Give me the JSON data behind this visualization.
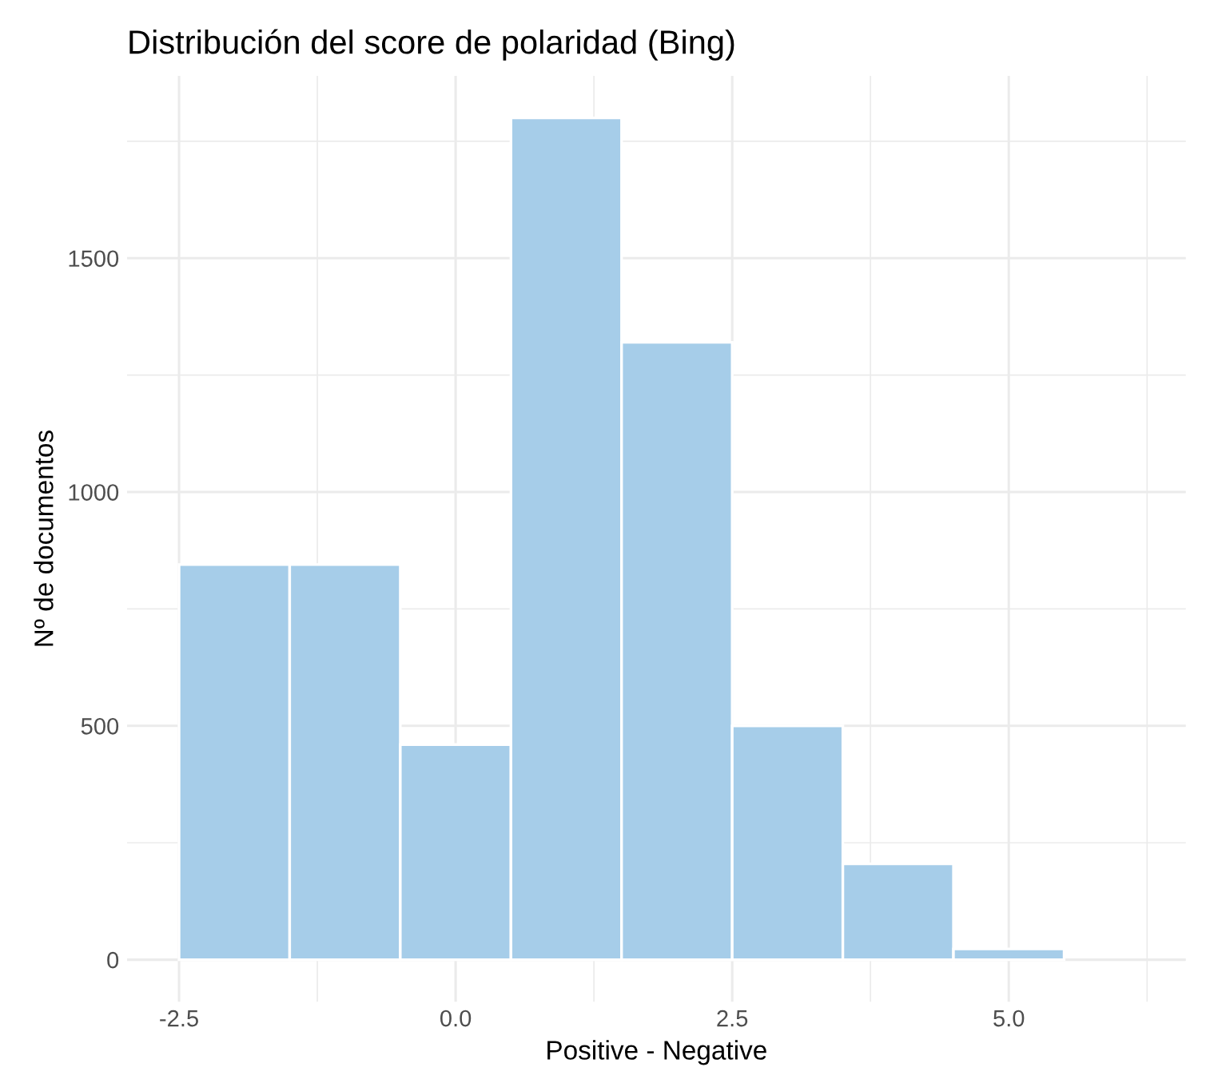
{
  "chart_data": {
    "type": "histogram",
    "title": "Distribución del score de polaridad (Bing)",
    "xlabel": "Positive - Negative",
    "ylabel": "Nº de documentos",
    "bins": [
      -2.5,
      -1.5,
      -0.5,
      0.5,
      1.5,
      2.5,
      3.5,
      4.5,
      5.5
    ],
    "values": [
      845,
      845,
      460,
      1800,
      1320,
      500,
      205,
      23
    ],
    "color": "#a6cde9",
    "xlim": [
      -2.97,
      6.6
    ],
    "ylim": [
      -90,
      1890
    ],
    "xticks": [
      {
        "value": -2.5,
        "label": "-2.5"
      },
      {
        "value": -1.25,
        "label": null
      },
      {
        "value": 0.0,
        "label": "0.0"
      },
      {
        "value": 1.25,
        "label": null
      },
      {
        "value": 2.5,
        "label": "2.5"
      },
      {
        "value": 3.75,
        "label": null
      },
      {
        "value": 5.0,
        "label": "5.0"
      },
      {
        "value": 6.25,
        "label": null
      }
    ],
    "yticks": [
      0,
      {
        "value": 250,
        "label": null
      },
      500,
      {
        "value": 750,
        "label": null
      },
      1000,
      {
        "value": 1250,
        "label": null
      },
      1500,
      {
        "value": 1750,
        "label": null
      }
    ],
    "grid": true,
    "legend": false
  }
}
